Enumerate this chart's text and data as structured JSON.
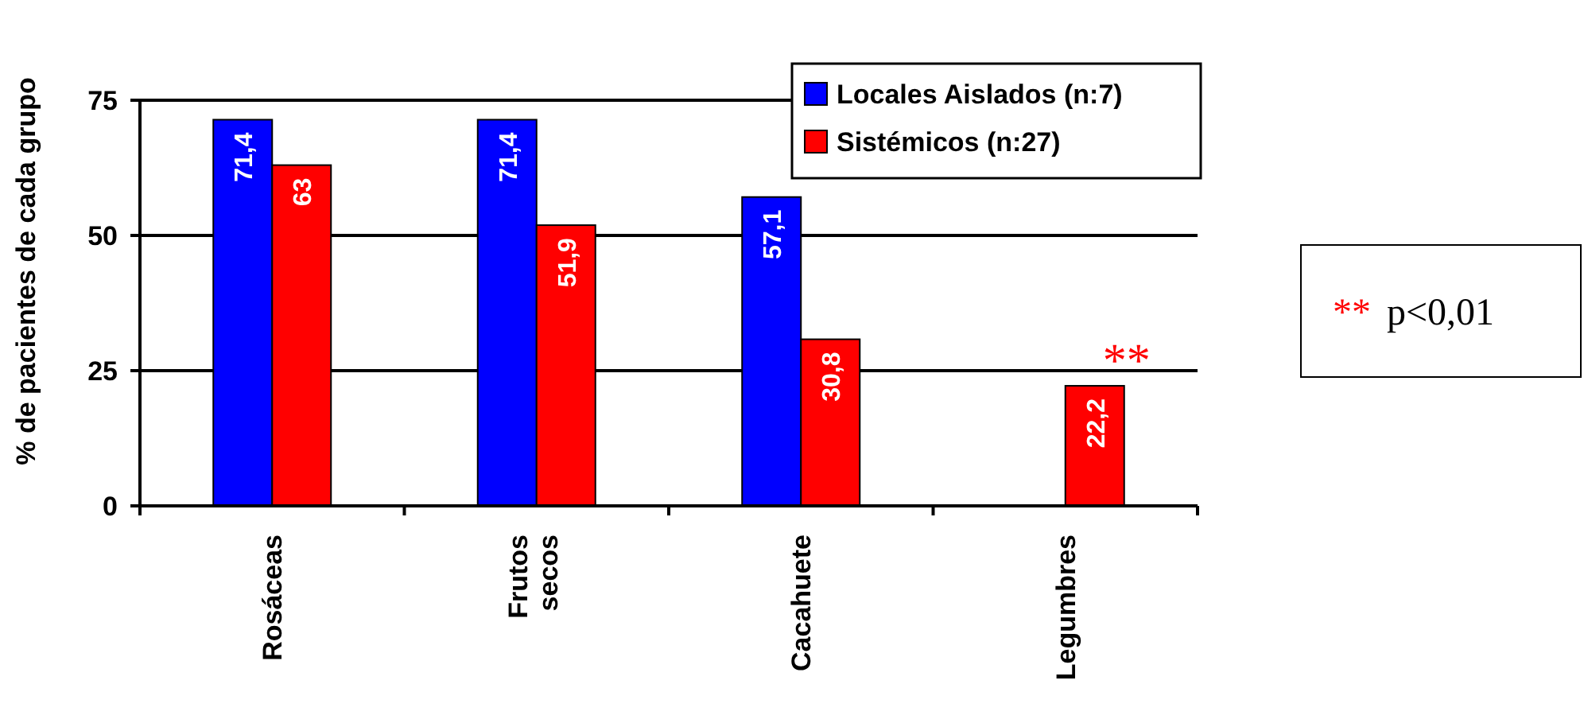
{
  "chart_data": {
    "type": "bar",
    "ylabel": "% de pacientes de cada grupo",
    "categories": [
      "Rosáceas",
      "Frutos secos",
      "Cacahuete",
      "Legumbres"
    ],
    "series": [
      {
        "name": "Locales Aislados (n:7)",
        "color": "#0000ff",
        "values": [
          71.4,
          71.4,
          57.1,
          0
        ],
        "value_labels": [
          "71,4",
          "71,4",
          "57,1",
          null
        ]
      },
      {
        "name": "Sistémicos (n:27)",
        "color": "#ff0000",
        "values": [
          63,
          51.9,
          30.8,
          22.2
        ],
        "value_labels": [
          "63",
          "51,9",
          "30,8",
          "22,2"
        ]
      }
    ],
    "ylim": [
      0,
      75
    ],
    "yticks": [
      0,
      25,
      50,
      75
    ],
    "grid": "y",
    "legend": "top right",
    "annotations": [
      "**",
      "** p<0,01"
    ]
  }
}
